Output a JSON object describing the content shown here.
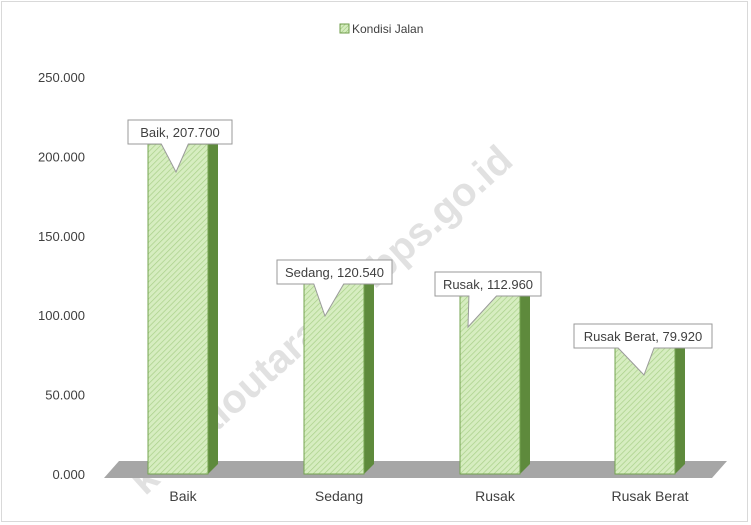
{
  "chart_data": {
    "type": "bar",
    "categories": [
      "Baik",
      "Sedang",
      "Rusak",
      "Rusak Berat"
    ],
    "series": [
      {
        "name": "Kondisi Jalan",
        "values": [
          207.7,
          120.54,
          112.96,
          79.92
        ]
      }
    ],
    "data_labels": [
      "Baik, 207.700",
      "Sedang, 120.540",
      "Rusak, 112.960",
      "Rusak Berat, 79.920"
    ],
    "y_ticks": [
      "0.000",
      "50.000",
      "100.000",
      "150.000",
      "200.000",
      "250.000"
    ],
    "ylim": [
      0,
      250
    ],
    "legend": {
      "position": "top",
      "label": "Kondisi Jalan"
    },
    "grid": false,
    "watermark": "kontaloutarakab.bps.go.id",
    "colors": {
      "bar_fill": "#c9e6ad",
      "bar_side": "#5e8a3c",
      "bar_top": "#7aa957",
      "floor": "#a6a6a6",
      "label_border": "#9a9a9a",
      "text": "#404040",
      "watermark": "#d8d8d8"
    }
  }
}
